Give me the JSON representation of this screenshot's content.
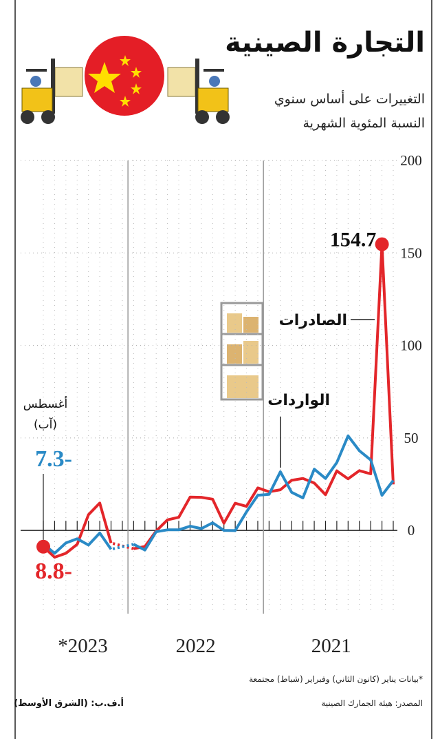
{
  "chart_data": {
    "type": "line",
    "title": "التجارة الصينية",
    "subtitle": [
      "التغييرات على أساس سنوي",
      "النسبة المئوية الشهرية"
    ],
    "categories": [
      null,
      null,
      null,
      null,
      null,
      null,
      null,
      null,
      null,
      null,
      null,
      null,
      null,
      null,
      null,
      null,
      null,
      null,
      null,
      null,
      null,
      null,
      null,
      null,
      null,
      null,
      null,
      null,
      null,
      null,
      null,
      null
    ],
    "year_labels": [
      "2021",
      "2022",
      "*2023"
    ],
    "series": [
      {
        "name": "الصادرات",
        "color": "#e3262a",
        "values": [
          24.9,
          154.7,
          30.6,
          32.3,
          27.9,
          32.2,
          19.3,
          25.6,
          28.1,
          27.1,
          22,
          20.9,
          23,
          13,
          14.7,
          3.9,
          16.9,
          17.9,
          18,
          7.1,
          5.7,
          -0.3,
          -8.7,
          -9.9,
          null,
          -6.8,
          14.8,
          8.5,
          -7.5,
          -12.4,
          -14.5,
          -8.8
        ],
        "value_labels": [
          null,
          "154.7",
          null,
          null,
          null,
          null,
          null,
          null,
          null,
          null,
          null,
          null,
          null,
          null,
          null,
          null,
          null,
          null,
          null,
          null,
          null,
          null,
          null,
          null,
          null,
          null,
          null,
          null,
          null,
          null,
          null,
          "8.8-"
        ]
      },
      {
        "name": "الواردات",
        "color": "#2a8ac6",
        "values": [
          27,
          19,
          38.1,
          43.1,
          51.1,
          36.7,
          28.1,
          33.1,
          17.6,
          20.6,
          31.7,
          19.5,
          19,
          10,
          -0.1,
          0,
          4.1,
          1,
          2.3,
          0.3,
          0.3,
          -0.7,
          -10.6,
          -7.5,
          null,
          -10.2,
          -1.4,
          -7.9,
          -4.5,
          -6.8,
          -12.4,
          -7.3
        ],
        "value_labels": [
          null,
          null,
          null,
          null,
          null,
          null,
          null,
          null,
          null,
          null,
          null,
          null,
          null,
          null,
          null,
          null,
          null,
          null,
          null,
          null,
          null,
          null,
          null,
          null,
          null,
          null,
          null,
          null,
          null,
          null,
          null,
          "7.3-"
        ]
      }
    ],
    "annotations": [
      "أغسطس",
      "(آب)"
    ],
    "ylim": [
      -45,
      200
    ],
    "yticks": [
      0,
      50,
      100,
      150,
      200
    ],
    "grid": true,
    "x_direction": "right-to-left",
    "footnote": "*بيانات يناير (كانون الثاني) وفبراير (شباط) مجتمعة",
    "source": "المصدر: هيئة الجمارك الصينية",
    "credit": "أ.ف.ب: (الشرق الأوسط)"
  }
}
